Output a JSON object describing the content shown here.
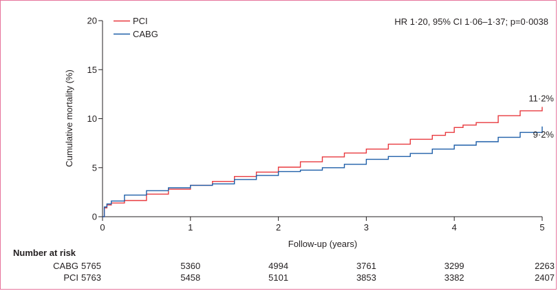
{
  "chart_data": {
    "type": "line",
    "xlabel": "Follow-up (years)",
    "ylabel": "Cumulative mortality (%)",
    "xlim": [
      0,
      5
    ],
    "ylim": [
      0,
      20
    ],
    "x_ticks": [
      "0",
      "1",
      "2",
      "3",
      "4",
      "5"
    ],
    "y_ticks": [
      "0",
      "5",
      "10",
      "15",
      "20"
    ],
    "annotation": "HR 1·20, 95% CI 1·06–1·37; p=0·0038",
    "legend_position": "top-left",
    "series": [
      {
        "name": "PCI",
        "color": "#e8383d",
        "end_label": "11·2%",
        "points": [
          [
            0,
            0
          ],
          [
            0.02,
            0.9
          ],
          [
            0.05,
            1.2
          ],
          [
            0.1,
            1.4
          ],
          [
            0.25,
            1.65
          ],
          [
            0.5,
            2.3
          ],
          [
            0.75,
            2.8
          ],
          [
            1.0,
            3.2
          ],
          [
            1.25,
            3.6
          ],
          [
            1.5,
            4.1
          ],
          [
            1.75,
            4.55
          ],
          [
            2.0,
            5.05
          ],
          [
            2.25,
            5.6
          ],
          [
            2.5,
            6.1
          ],
          [
            2.75,
            6.5
          ],
          [
            3.0,
            6.9
          ],
          [
            3.25,
            7.4
          ],
          [
            3.5,
            7.9
          ],
          [
            3.75,
            8.3
          ],
          [
            3.9,
            8.6
          ],
          [
            4.0,
            9.1
          ],
          [
            4.1,
            9.35
          ],
          [
            4.25,
            9.6
          ],
          [
            4.5,
            10.3
          ],
          [
            4.75,
            10.8
          ],
          [
            5.0,
            11.2
          ]
        ]
      },
      {
        "name": "CABG",
        "color": "#1d5ea8",
        "end_label": "9·2%",
        "points": [
          [
            0,
            0
          ],
          [
            0.02,
            1.0
          ],
          [
            0.05,
            1.3
          ],
          [
            0.1,
            1.6
          ],
          [
            0.25,
            2.2
          ],
          [
            0.5,
            2.65
          ],
          [
            0.75,
            2.95
          ],
          [
            1.0,
            3.2
          ],
          [
            1.25,
            3.35
          ],
          [
            1.5,
            3.8
          ],
          [
            1.75,
            4.2
          ],
          [
            2.0,
            4.6
          ],
          [
            2.25,
            4.75
          ],
          [
            2.5,
            5.0
          ],
          [
            2.75,
            5.35
          ],
          [
            3.0,
            5.85
          ],
          [
            3.25,
            6.15
          ],
          [
            3.5,
            6.45
          ],
          [
            3.75,
            6.9
          ],
          [
            4.0,
            7.3
          ],
          [
            4.25,
            7.65
          ],
          [
            4.5,
            8.1
          ],
          [
            4.75,
            8.6
          ],
          [
            5.0,
            9.2
          ]
        ]
      }
    ]
  },
  "risk_table": {
    "title": "Number at risk",
    "rows": [
      {
        "label": "CABG",
        "values": [
          "5765",
          "5360",
          "4994",
          "3761",
          "3299",
          "2263"
        ]
      },
      {
        "label": "PCI",
        "values": [
          "5763",
          "5458",
          "5101",
          "3853",
          "3382",
          "2407"
        ]
      }
    ]
  }
}
